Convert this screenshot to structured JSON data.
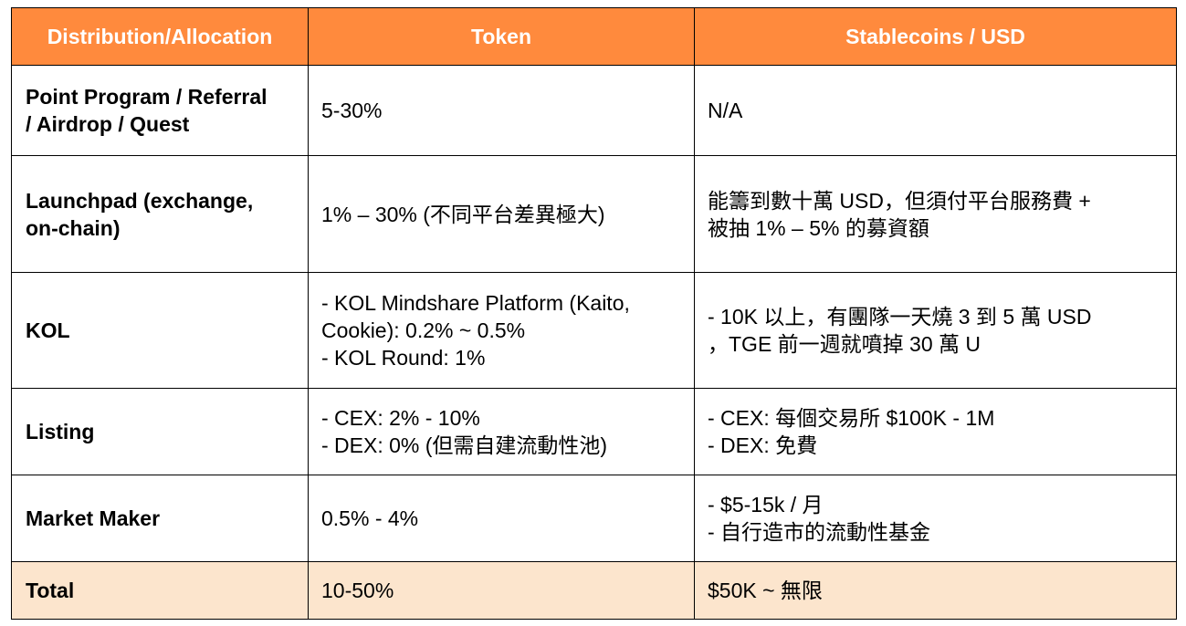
{
  "header": {
    "col1": "Distribution/Allocation",
    "col2": "Token",
    "col3": "Stablecoins / USD"
  },
  "rows": [
    {
      "label_lines": [
        "Point Program / Referral",
        "/ Airdrop / Quest"
      ],
      "token_lines": [
        "5-30%"
      ],
      "usd_lines": [
        "N/A"
      ]
    },
    {
      "label_lines": [
        "Launchpad (exchange,",
        "on-chain)"
      ],
      "token_lines": [
        "1% – 30% (不同平台差異極大)"
      ],
      "usd_lines": [
        "能籌到數十萬 USD，但須付平台服務費 +",
        "被抽 1% – 5% 的募資額"
      ]
    },
    {
      "label_lines": [
        "KOL"
      ],
      "token_lines": [
        "- KOL Mindshare Platform (Kaito,",
        "Cookie): 0.2% ~ 0.5%",
        "- KOL Round: 1%"
      ],
      "usd_lines": [
        "- 10K 以上，有團隊一天燒 3 到 5 萬 USD",
        "，TGE 前一週就噴掉 30 萬 U"
      ]
    },
    {
      "label_lines": [
        "Listing"
      ],
      "token_lines": [
        "- CEX: 2% - 10%",
        "- DEX: 0% (但需自建流動性池)"
      ],
      "usd_lines": [
        "- CEX: 每個交易所 $100K - 1M",
        "- DEX: 免費"
      ]
    },
    {
      "label_lines": [
        "Market Maker"
      ],
      "token_lines": [
        "0.5% - 4%"
      ],
      "usd_lines": [
        "- $5-15k / 月",
        "- 自行造市的流動性基金"
      ]
    }
  ],
  "total": {
    "label": "Total",
    "token": "10-50%",
    "usd": "$50K ~ 無限"
  },
  "colors": {
    "header_bg": "#ff8a3d",
    "header_text": "#ffffff",
    "total_bg": "#fce5cd",
    "border": "#000000"
  }
}
